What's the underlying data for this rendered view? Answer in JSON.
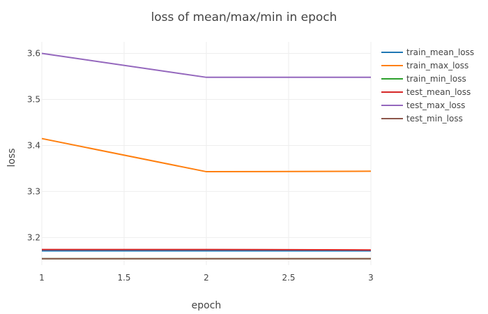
{
  "chart_data": {
    "type": "line",
    "title": "loss of mean/max/min in epoch",
    "xlabel": "epoch",
    "ylabel": "loss",
    "x": [
      1,
      2,
      3
    ],
    "xlim": [
      1,
      3
    ],
    "ylim": [
      3.14,
      3.625
    ],
    "x_ticks": [
      1,
      1.5,
      2,
      2.5,
      3
    ],
    "x_tick_labels": [
      "1",
      "1.5",
      "2",
      "2.5",
      "3"
    ],
    "y_ticks": [
      3.2,
      3.3,
      3.4,
      3.5,
      3.6
    ],
    "y_tick_labels": [
      "3.2",
      "3.3",
      "3.4",
      "3.5",
      "3.6"
    ],
    "grid": true,
    "legend_position": "right",
    "series": [
      {
        "name": "train_mean_loss",
        "color": "#1f77b4",
        "values": [
          3.171,
          3.171,
          3.171
        ]
      },
      {
        "name": "train_max_loss",
        "color": "#ff7f0e",
        "values": [
          3.415,
          3.343,
          3.344
        ]
      },
      {
        "name": "train_min_loss",
        "color": "#2ca02c",
        "values": [
          3.154,
          3.154,
          3.154
        ]
      },
      {
        "name": "test_mean_loss",
        "color": "#d62728",
        "values": [
          3.174,
          3.174,
          3.173
        ]
      },
      {
        "name": "test_max_loss",
        "color": "#9467bd",
        "values": [
          3.6,
          3.548,
          3.548
        ]
      },
      {
        "name": "test_min_loss",
        "color": "#8c564b",
        "values": [
          3.154,
          3.154,
          3.154
        ]
      }
    ]
  }
}
